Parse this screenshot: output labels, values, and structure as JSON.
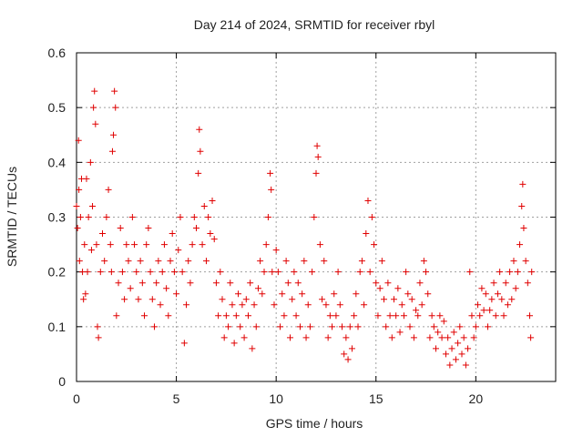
{
  "chart_data": {
    "type": "scatter",
    "title": "Day 214 of 2024, SRMTID for receiver rbyl",
    "xlabel": "GPS time / hours",
    "ylabel": "SRMTID / TECUs",
    "xlim": [
      0,
      24
    ],
    "ylim": [
      0,
      0.6
    ],
    "xticks": [
      0,
      5,
      10,
      15,
      20
    ],
    "yticks": [
      0,
      0.1,
      0.2,
      0.3,
      0.4,
      0.5,
      0.6
    ],
    "xtick_labels": [
      "0",
      "5",
      "10",
      "15",
      "20"
    ],
    "ytick_labels": [
      "0",
      "0.1",
      "0.2",
      "0.3",
      "0.4",
      "0.5",
      "0.6"
    ],
    "grid": true,
    "marker": "+",
    "marker_color": "#e00000",
    "series": [
      {
        "name": "rbyl",
        "points": [
          [
            0.0,
            0.32
          ],
          [
            0.05,
            0.28
          ],
          [
            0.1,
            0.44
          ],
          [
            0.12,
            0.35
          ],
          [
            0.15,
            0.22
          ],
          [
            0.2,
            0.3
          ],
          [
            0.25,
            0.37
          ],
          [
            0.3,
            0.2
          ],
          [
            0.35,
            0.15
          ],
          [
            0.4,
            0.25
          ],
          [
            0.45,
            0.16
          ],
          [
            0.5,
            0.37
          ],
          [
            0.55,
            0.2
          ],
          [
            0.6,
            0.3
          ],
          [
            0.7,
            0.4
          ],
          [
            0.75,
            0.24
          ],
          [
            0.8,
            0.32
          ],
          [
            0.85,
            0.5
          ],
          [
            0.9,
            0.53
          ],
          [
            0.95,
            0.47
          ],
          [
            1.0,
            0.25
          ],
          [
            1.05,
            0.1
          ],
          [
            1.1,
            0.08
          ],
          [
            1.2,
            0.2
          ],
          [
            1.3,
            0.27
          ],
          [
            1.4,
            0.22
          ],
          [
            1.5,
            0.3
          ],
          [
            1.6,
            0.35
          ],
          [
            1.7,
            0.25
          ],
          [
            1.75,
            0.2
          ],
          [
            1.8,
            0.42
          ],
          [
            1.85,
            0.45
          ],
          [
            1.9,
            0.53
          ],
          [
            1.95,
            0.5
          ],
          [
            2.0,
            0.12
          ],
          [
            2.1,
            0.18
          ],
          [
            2.2,
            0.28
          ],
          [
            2.3,
            0.2
          ],
          [
            2.4,
            0.15
          ],
          [
            2.5,
            0.25
          ],
          [
            2.6,
            0.22
          ],
          [
            2.7,
            0.17
          ],
          [
            2.8,
            0.3
          ],
          [
            2.9,
            0.25
          ],
          [
            3.0,
            0.2
          ],
          [
            3.1,
            0.15
          ],
          [
            3.2,
            0.22
          ],
          [
            3.3,
            0.18
          ],
          [
            3.4,
            0.12
          ],
          [
            3.5,
            0.25
          ],
          [
            3.6,
            0.28
          ],
          [
            3.7,
            0.2
          ],
          [
            3.8,
            0.15
          ],
          [
            3.9,
            0.1
          ],
          [
            4.0,
            0.18
          ],
          [
            4.1,
            0.22
          ],
          [
            4.2,
            0.14
          ],
          [
            4.3,
            0.2
          ],
          [
            4.4,
            0.25
          ],
          [
            4.5,
            0.17
          ],
          [
            4.6,
            0.12
          ],
          [
            4.7,
            0.22
          ],
          [
            4.8,
            0.27
          ],
          [
            4.9,
            0.2
          ],
          [
            5.0,
            0.16
          ],
          [
            5.1,
            0.24
          ],
          [
            5.2,
            0.3
          ],
          [
            5.3,
            0.2
          ],
          [
            5.4,
            0.07
          ],
          [
            5.5,
            0.14
          ],
          [
            5.6,
            0.22
          ],
          [
            5.7,
            0.18
          ],
          [
            5.8,
            0.25
          ],
          [
            5.9,
            0.3
          ],
          [
            6.0,
            0.28
          ],
          [
            6.1,
            0.38
          ],
          [
            6.15,
            0.46
          ],
          [
            6.2,
            0.42
          ],
          [
            6.3,
            0.25
          ],
          [
            6.4,
            0.32
          ],
          [
            6.5,
            0.22
          ],
          [
            6.6,
            0.3
          ],
          [
            6.7,
            0.27
          ],
          [
            6.8,
            0.33
          ],
          [
            6.9,
            0.26
          ],
          [
            7.0,
            0.18
          ],
          [
            7.1,
            0.12
          ],
          [
            7.2,
            0.2
          ],
          [
            7.3,
            0.15
          ],
          [
            7.4,
            0.08
          ],
          [
            7.5,
            0.12
          ],
          [
            7.6,
            0.1
          ],
          [
            7.7,
            0.18
          ],
          [
            7.8,
            0.14
          ],
          [
            7.9,
            0.07
          ],
          [
            8.0,
            0.12
          ],
          [
            8.1,
            0.16
          ],
          [
            8.2,
            0.1
          ],
          [
            8.3,
            0.14
          ],
          [
            8.4,
            0.08
          ],
          [
            8.5,
            0.15
          ],
          [
            8.6,
            0.12
          ],
          [
            8.7,
            0.18
          ],
          [
            8.8,
            0.06
          ],
          [
            8.9,
            0.14
          ],
          [
            9.0,
            0.1
          ],
          [
            9.1,
            0.17
          ],
          [
            9.2,
            0.22
          ],
          [
            9.3,
            0.16
          ],
          [
            9.4,
            0.2
          ],
          [
            9.5,
            0.25
          ],
          [
            9.6,
            0.3
          ],
          [
            9.7,
            0.38
          ],
          [
            9.75,
            0.35
          ],
          [
            9.8,
            0.2
          ],
          [
            9.9,
            0.14
          ],
          [
            10.0,
            0.24
          ],
          [
            10.1,
            0.2
          ],
          [
            10.2,
            0.1
          ],
          [
            10.3,
            0.16
          ],
          [
            10.4,
            0.12
          ],
          [
            10.5,
            0.22
          ],
          [
            10.6,
            0.18
          ],
          [
            10.7,
            0.08
          ],
          [
            10.8,
            0.15
          ],
          [
            10.9,
            0.2
          ],
          [
            11.0,
            0.12
          ],
          [
            11.1,
            0.18
          ],
          [
            11.2,
            0.1
          ],
          [
            11.3,
            0.16
          ],
          [
            11.4,
            0.22
          ],
          [
            11.5,
            0.08
          ],
          [
            11.6,
            0.14
          ],
          [
            11.7,
            0.1
          ],
          [
            11.8,
            0.2
          ],
          [
            11.9,
            0.3
          ],
          [
            12.0,
            0.38
          ],
          [
            12.05,
            0.43
          ],
          [
            12.1,
            0.41
          ],
          [
            12.2,
            0.25
          ],
          [
            12.3,
            0.15
          ],
          [
            12.4,
            0.22
          ],
          [
            12.5,
            0.14
          ],
          [
            12.6,
            0.08
          ],
          [
            12.7,
            0.12
          ],
          [
            12.8,
            0.1
          ],
          [
            12.9,
            0.16
          ],
          [
            13.0,
            0.12
          ],
          [
            13.1,
            0.2
          ],
          [
            13.2,
            0.14
          ],
          [
            13.3,
            0.1
          ],
          [
            13.4,
            0.05
          ],
          [
            13.5,
            0.08
          ],
          [
            13.6,
            0.04
          ],
          [
            13.7,
            0.1
          ],
          [
            13.8,
            0.06
          ],
          [
            13.9,
            0.12
          ],
          [
            14.0,
            0.16
          ],
          [
            14.1,
            0.1
          ],
          [
            14.2,
            0.2
          ],
          [
            14.3,
            0.22
          ],
          [
            14.4,
            0.14
          ],
          [
            14.5,
            0.27
          ],
          [
            14.6,
            0.33
          ],
          [
            14.7,
            0.2
          ],
          [
            14.8,
            0.3
          ],
          [
            14.9,
            0.25
          ],
          [
            15.0,
            0.18
          ],
          [
            15.1,
            0.12
          ],
          [
            15.2,
            0.17
          ],
          [
            15.3,
            0.22
          ],
          [
            15.4,
            0.15
          ],
          [
            15.5,
            0.1
          ],
          [
            15.6,
            0.18
          ],
          [
            15.7,
            0.12
          ],
          [
            15.8,
            0.08
          ],
          [
            15.9,
            0.15
          ],
          [
            16.0,
            0.12
          ],
          [
            16.1,
            0.17
          ],
          [
            16.2,
            0.09
          ],
          [
            16.3,
            0.14
          ],
          [
            16.4,
            0.12
          ],
          [
            16.5,
            0.2
          ],
          [
            16.6,
            0.16
          ],
          [
            16.7,
            0.1
          ],
          [
            16.8,
            0.15
          ],
          [
            16.9,
            0.08
          ],
          [
            17.0,
            0.13
          ],
          [
            17.1,
            0.12
          ],
          [
            17.2,
            0.18
          ],
          [
            17.3,
            0.14
          ],
          [
            17.4,
            0.22
          ],
          [
            17.5,
            0.2
          ],
          [
            17.6,
            0.16
          ],
          [
            17.7,
            0.08
          ],
          [
            17.8,
            0.12
          ],
          [
            17.9,
            0.1
          ],
          [
            18.0,
            0.06
          ],
          [
            18.1,
            0.09
          ],
          [
            18.2,
            0.12
          ],
          [
            18.3,
            0.08
          ],
          [
            18.4,
            0.11
          ],
          [
            18.5,
            0.05
          ],
          [
            18.6,
            0.08
          ],
          [
            18.7,
            0.03
          ],
          [
            18.8,
            0.06
          ],
          [
            18.9,
            0.09
          ],
          [
            19.0,
            0.04
          ],
          [
            19.1,
            0.07
          ],
          [
            19.2,
            0.1
          ],
          [
            19.3,
            0.05
          ],
          [
            19.4,
            0.08
          ],
          [
            19.5,
            0.03
          ],
          [
            19.6,
            0.06
          ],
          [
            19.7,
            0.2
          ],
          [
            19.8,
            0.12
          ],
          [
            19.9,
            0.08
          ],
          [
            20.0,
            0.1
          ],
          [
            20.1,
            0.14
          ],
          [
            20.2,
            0.12
          ],
          [
            20.3,
            0.17
          ],
          [
            20.4,
            0.13
          ],
          [
            20.5,
            0.16
          ],
          [
            20.6,
            0.1
          ],
          [
            20.7,
            0.13
          ],
          [
            20.8,
            0.15
          ],
          [
            20.9,
            0.18
          ],
          [
            21.0,
            0.12
          ],
          [
            21.1,
            0.16
          ],
          [
            21.2,
            0.2
          ],
          [
            21.3,
            0.15
          ],
          [
            21.4,
            0.12
          ],
          [
            21.5,
            0.18
          ],
          [
            21.6,
            0.14
          ],
          [
            21.7,
            0.2
          ],
          [
            21.8,
            0.15
          ],
          [
            21.9,
            0.22
          ],
          [
            22.0,
            0.17
          ],
          [
            22.1,
            0.2
          ],
          [
            22.2,
            0.25
          ],
          [
            22.3,
            0.32
          ],
          [
            22.35,
            0.36
          ],
          [
            22.4,
            0.28
          ],
          [
            22.5,
            0.22
          ],
          [
            22.6,
            0.18
          ],
          [
            22.7,
            0.12
          ],
          [
            22.75,
            0.08
          ],
          [
            22.8,
            0.2
          ]
        ]
      }
    ]
  }
}
